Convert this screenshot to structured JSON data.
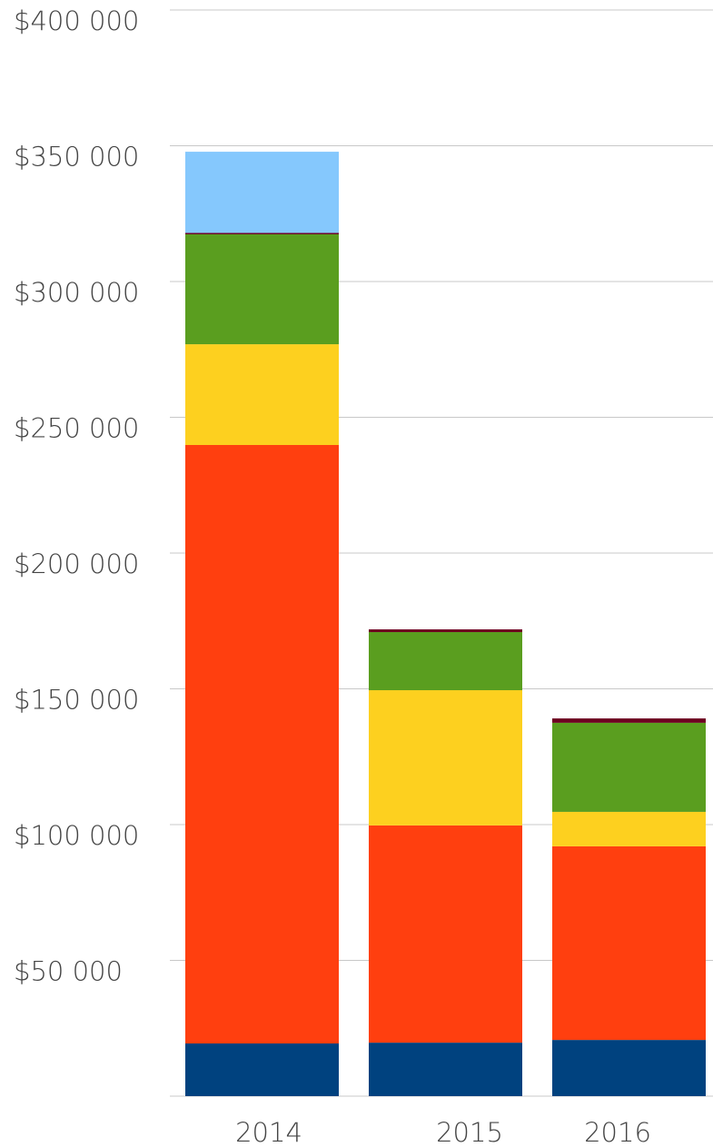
{
  "chart_data": {
    "type": "stacked_bar",
    "categories": [
      "2014",
      "2015",
      "2016"
    ],
    "series": [
      {
        "color": "#00427f",
        "values": [
          19400,
          19700,
          20700
        ]
      },
      {
        "color": "#ff3f0f",
        "values": [
          220400,
          80000,
          71300
        ]
      },
      {
        "color": "#fdd01f",
        "values": [
          37100,
          49800,
          12700
        ]
      },
      {
        "color": "#5a9e1f",
        "values": [
          40500,
          21400,
          32800
        ]
      },
      {
        "color": "#6d0020",
        "values": [
          500,
          1000,
          1600
        ]
      },
      {
        "color": "#85c8fd",
        "values": [
          29900,
          0,
          0
        ]
      }
    ],
    "ylim": [
      0,
      400000
    ],
    "yticks": [
      {
        "value": 50000,
        "label": "$50 000"
      },
      {
        "value": 100000,
        "label": "$100 000"
      },
      {
        "value": 150000,
        "label": "$150 000"
      },
      {
        "value": 200000,
        "label": "$200 000"
      },
      {
        "value": 250000,
        "label": "$250 000"
      },
      {
        "value": 300000,
        "label": "$300 000"
      },
      {
        "value": 350000,
        "label": "$350 000"
      },
      {
        "value": 400000,
        "label": "$400 000"
      }
    ],
    "grid": true
  }
}
